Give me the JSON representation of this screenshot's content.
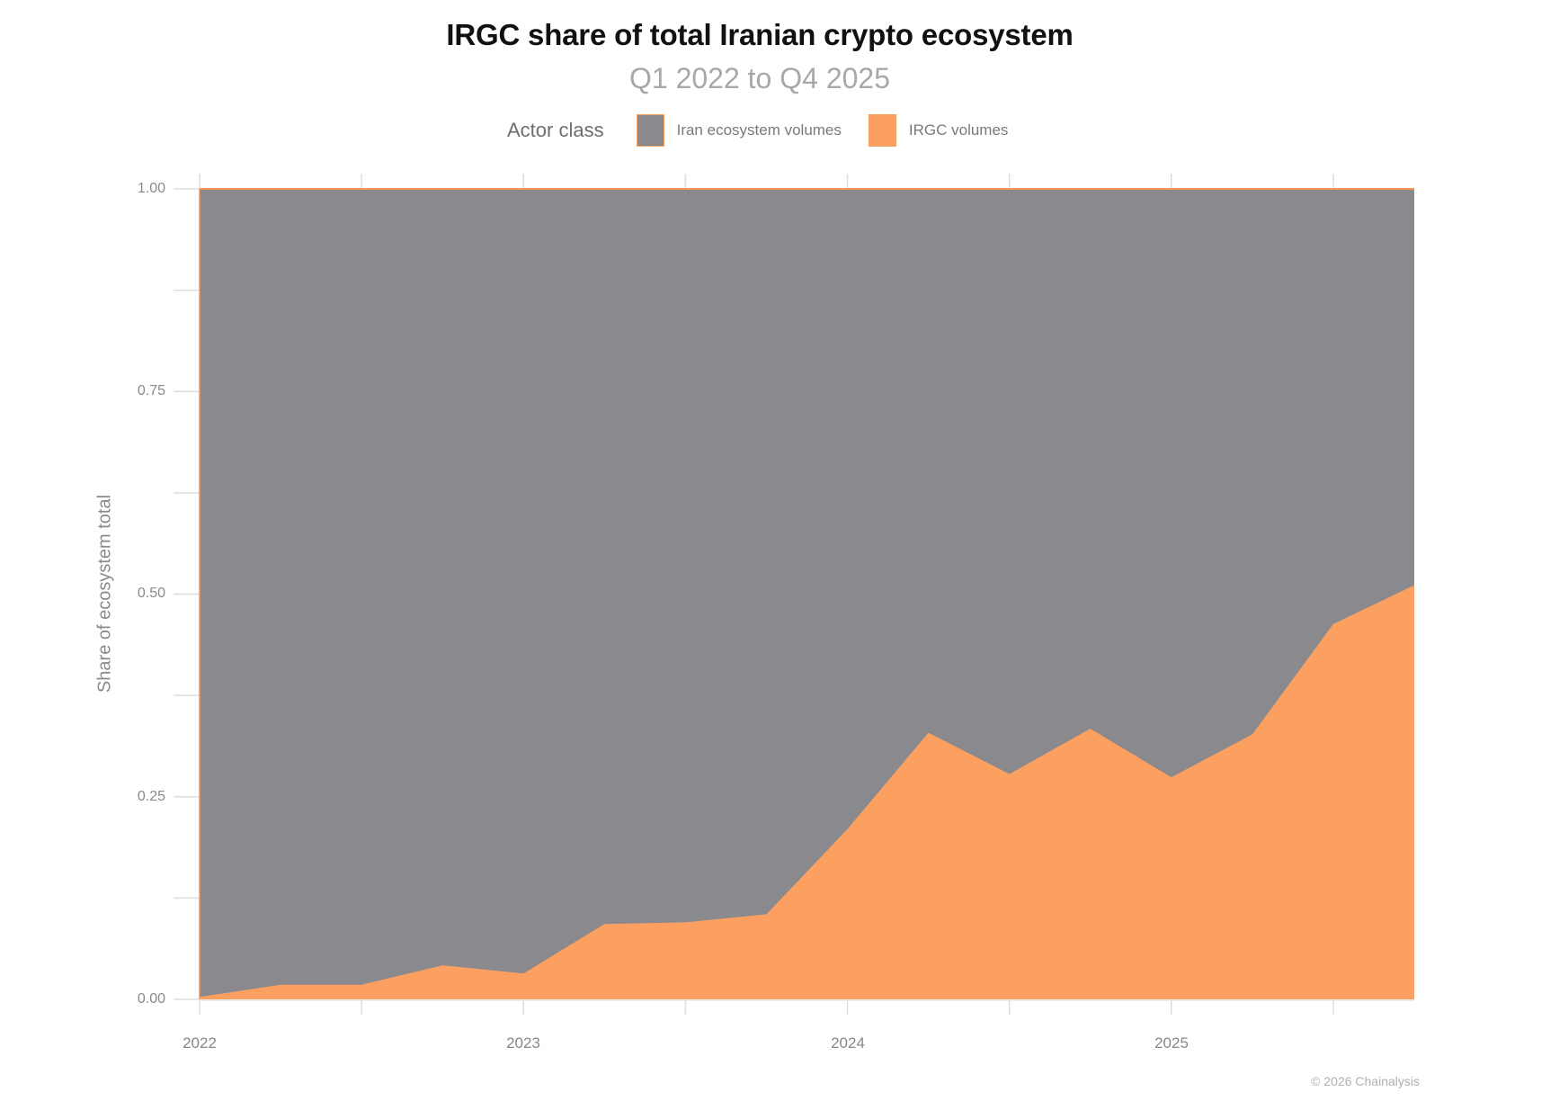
{
  "header": {
    "title": "IRGC share of total Iranian crypto ecosystem",
    "subtitle": "Q1 2022 to Q4 2025"
  },
  "legend": {
    "title": "Actor class",
    "items": [
      {
        "label": "Iran ecosystem volumes",
        "color": "#8a898d"
      },
      {
        "label": "IRGC volumes",
        "color": "#fca061"
      }
    ]
  },
  "axes": {
    "ylabel": "Share of ecosystem total",
    "yticks": [
      "1.00",
      "0.75",
      "0.50",
      "0.25",
      "0.00"
    ],
    "xticks": [
      "2022",
      "2023",
      "2024",
      "2025"
    ]
  },
  "footer": {
    "credit": "© 2026 Chainalysis"
  },
  "chart_data": {
    "type": "area",
    "stacked": "percent",
    "title": "IRGC share of total Iranian crypto ecosystem",
    "subtitle": "Q1 2022 to Q4 2025",
    "xlabel": "",
    "ylabel": "Share of ecosystem total",
    "ylim": [
      0,
      1
    ],
    "legend_title": "Actor class",
    "legend_position": "top",
    "grid": false,
    "x": [
      "Q1 2022",
      "Q2 2022",
      "Q3 2022",
      "Q4 2022",
      "Q1 2023",
      "Q2 2023",
      "Q3 2023",
      "Q4 2023",
      "Q1 2024",
      "Q2 2024",
      "Q3 2024",
      "Q4 2024",
      "Q1 2025",
      "Q2 2025",
      "Q3 2025",
      "Q4 2025"
    ],
    "x_tick_labels": [
      "2022",
      "2023",
      "2024",
      "2025"
    ],
    "y_tick_labels": [
      "0.00",
      "0.25",
      "0.50",
      "0.75",
      "1.00"
    ],
    "series": [
      {
        "name": "IRGC volumes",
        "color": "#fca061",
        "values": [
          0.003,
          0.018,
          0.018,
          0.042,
          0.032,
          0.093,
          0.095,
          0.105,
          0.21,
          0.329,
          0.278,
          0.334,
          0.274,
          0.327,
          0.463,
          0.511
        ]
      },
      {
        "name": "Iran ecosystem volumes",
        "color": "#8a898d",
        "values": [
          0.997,
          0.982,
          0.982,
          0.958,
          0.968,
          0.907,
          0.905,
          0.895,
          0.79,
          0.671,
          0.722,
          0.666,
          0.726,
          0.673,
          0.537,
          0.489
        ]
      }
    ],
    "annotations": [
      "© 2026 Chainalysis"
    ]
  }
}
